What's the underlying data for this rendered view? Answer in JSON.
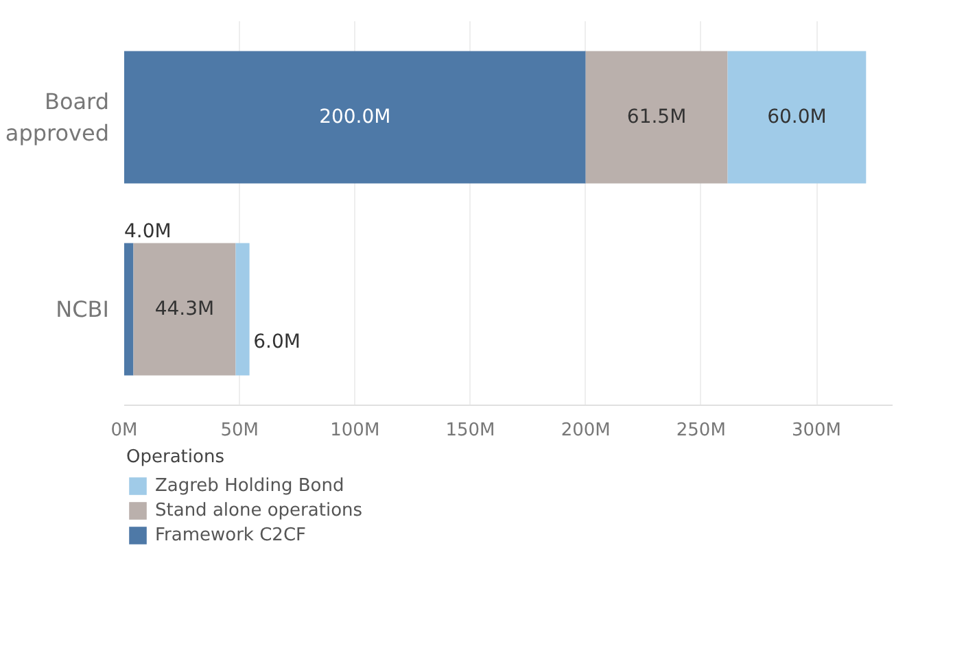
{
  "chart_data": {
    "type": "bar",
    "orientation": "horizontal",
    "stacked": true,
    "categories": [
      "Board approved",
      "NCBI"
    ],
    "series": [
      {
        "name": "Framework C2CF",
        "color": "#4e79a7",
        "values": [
          200.0,
          4.0
        ],
        "value_labels": [
          "200.0M",
          "4.0M"
        ]
      },
      {
        "name": "Stand alone operations",
        "color": "#bab0ac",
        "values": [
          61.5,
          44.3
        ],
        "value_labels": [
          "61.5M",
          "44.3M"
        ]
      },
      {
        "name": "Zagreb Holding Bond",
        "color": "#a0cbe8",
        "values": [
          60.0,
          6.0
        ],
        "value_labels": [
          "60.0M",
          "6.0M"
        ]
      }
    ],
    "xlim": [
      0,
      333
    ],
    "xticks": [
      {
        "value": 0,
        "label": "0M"
      },
      {
        "value": 50,
        "label": "50M"
      },
      {
        "value": 100,
        "label": "100M"
      },
      {
        "value": 150,
        "label": "150M"
      },
      {
        "value": 200,
        "label": "200M"
      },
      {
        "value": 250,
        "label": "250M"
      },
      {
        "value": 300,
        "label": "300M"
      }
    ],
    "grid": "x",
    "legend": "bottom left",
    "legend_title": "Operations"
  }
}
